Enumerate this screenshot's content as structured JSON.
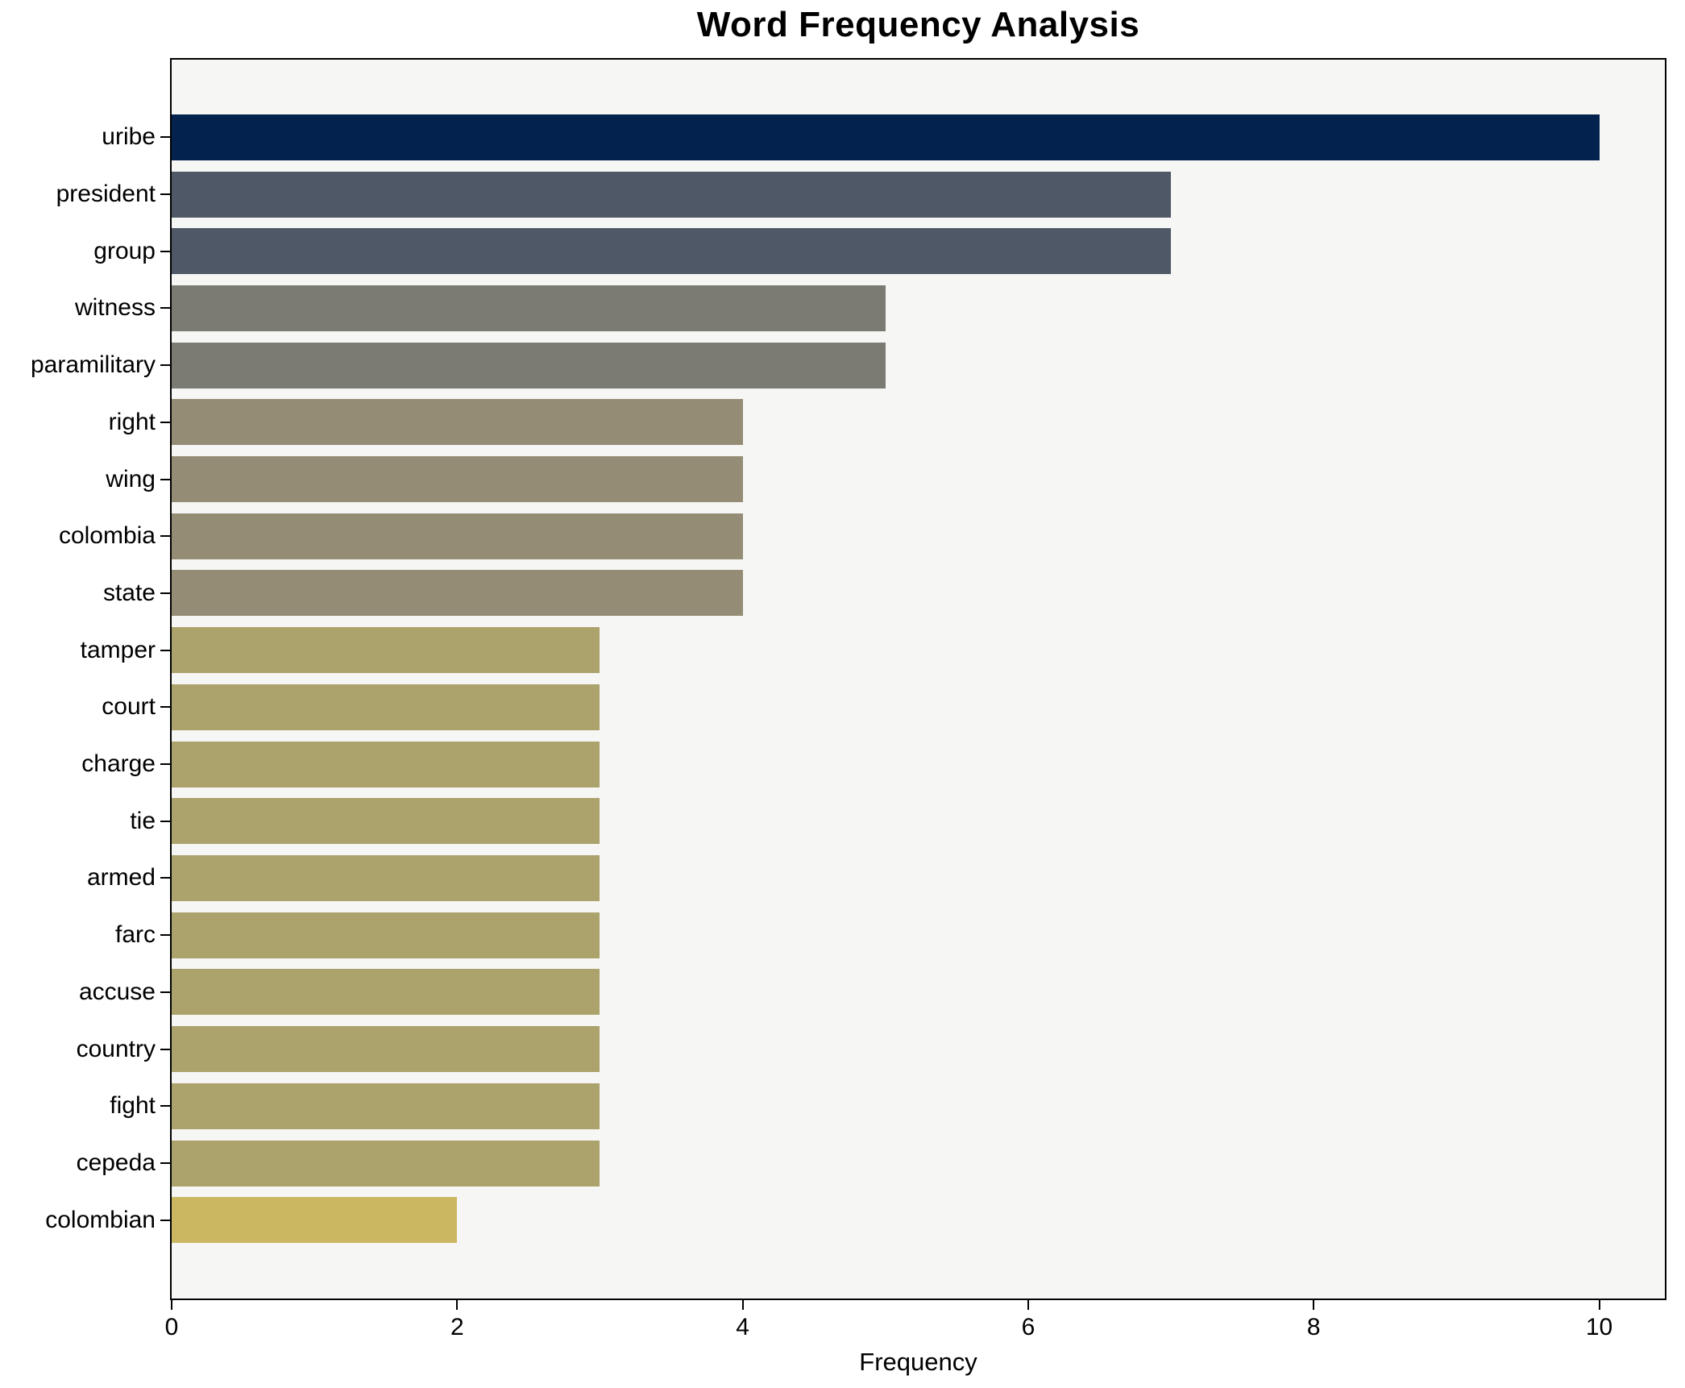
{
  "title": "Word Frequency Analysis",
  "chart_data": {
    "type": "bar",
    "orientation": "horizontal",
    "title": "Word Frequency Analysis",
    "xlabel": "Frequency",
    "ylabel": "",
    "categories": [
      "uribe",
      "president",
      "group",
      "witness",
      "paramilitary",
      "right",
      "wing",
      "colombia",
      "state",
      "tamper",
      "court",
      "charge",
      "tie",
      "armed",
      "farc",
      "accuse",
      "country",
      "fight",
      "cepeda",
      "colombian"
    ],
    "values": [
      10,
      7,
      7,
      5,
      5,
      4,
      4,
      4,
      4,
      3,
      3,
      3,
      3,
      3,
      3,
      3,
      3,
      3,
      3,
      2
    ],
    "bar_colors": [
      "#03234e",
      "#4f5866",
      "#4f5866",
      "#7b7a73",
      "#7b7a73",
      "#948c74",
      "#948c74",
      "#948c74",
      "#948c74",
      "#aca26c",
      "#aca26c",
      "#aca26c",
      "#aca26c",
      "#aca26c",
      "#aca26c",
      "#aca26c",
      "#aca26c",
      "#aca26c",
      "#aca26c",
      "#cbb762"
    ],
    "x_ticks": [
      0,
      2,
      4,
      6,
      8,
      10
    ],
    "x_tick_labels": [
      "0",
      "2",
      "4",
      "6",
      "8",
      "10"
    ],
    "xlim": [
      0,
      10.46
    ],
    "grid": false,
    "legend": "none",
    "plot_background": "#f6f6f5",
    "figure_background": "#ffffff",
    "axis_border_color": "#000000"
  }
}
